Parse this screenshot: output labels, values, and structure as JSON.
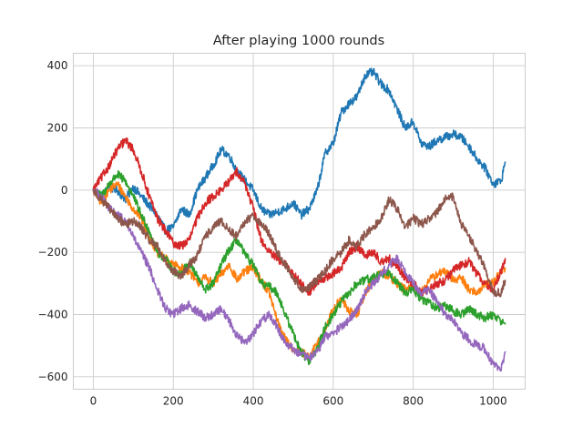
{
  "chart_data": {
    "type": "line",
    "title": "After playing 1000 rounds",
    "xlabel": "",
    "ylabel": "",
    "xlim": [
      -50,
      1080
    ],
    "ylim": [
      -640,
      440
    ],
    "xticks": [
      0,
      200,
      400,
      600,
      800,
      1000
    ],
    "yticks": [
      -600,
      -400,
      -200,
      0,
      200,
      400
    ],
    "xtick_labels": [
      "0",
      "200",
      "400",
      "600",
      "800",
      "1000"
    ],
    "ytick_labels": [
      "−600",
      "−400",
      "−200",
      "0",
      "200",
      "400"
    ],
    "grid": true,
    "legend": "none",
    "noise_amplitude": 14,
    "series": [
      {
        "color": "#1f77b4",
        "x": [
          0,
          20,
          40,
          60,
          80,
          100,
          120,
          140,
          160,
          180,
          200,
          220,
          240,
          260,
          280,
          300,
          320,
          340,
          360,
          380,
          400,
          420,
          440,
          460,
          480,
          500,
          520,
          540,
          560,
          580,
          600,
          620,
          640,
          660,
          680,
          700,
          720,
          740,
          760,
          780,
          800,
          820,
          840,
          860,
          880,
          900,
          920,
          940,
          960,
          980,
          1000,
          1020,
          1030
        ],
        "values": [
          0,
          -20,
          10,
          0,
          -30,
          10,
          -20,
          -50,
          -80,
          -130,
          -120,
          -60,
          -80,
          0,
          40,
          80,
          130,
          110,
          60,
          30,
          0,
          -60,
          -80,
          -70,
          -60,
          -40,
          -80,
          -60,
          0,
          120,
          150,
          250,
          280,
          300,
          370,
          380,
          340,
          320,
          260,
          200,
          220,
          150,
          140,
          160,
          170,
          180,
          170,
          140,
          100,
          70,
          20,
          30,
          90
        ]
      },
      {
        "color": "#ff7f0e",
        "x": [
          0,
          20,
          40,
          60,
          80,
          100,
          120,
          140,
          160,
          180,
          200,
          220,
          240,
          260,
          280,
          300,
          320,
          340,
          360,
          380,
          400,
          420,
          440,
          460,
          480,
          500,
          520,
          540,
          560,
          580,
          600,
          620,
          640,
          660,
          680,
          700,
          720,
          740,
          760,
          780,
          800,
          820,
          840,
          860,
          880,
          900,
          920,
          940,
          960,
          980,
          1000,
          1020,
          1030
        ],
        "values": [
          0,
          -40,
          0,
          20,
          -20,
          -60,
          -90,
          -150,
          -200,
          -220,
          -240,
          -250,
          -260,
          -300,
          -280,
          -300,
          -270,
          -240,
          -290,
          -260,
          -250,
          -290,
          -330,
          -420,
          -480,
          -510,
          -520,
          -540,
          -490,
          -450,
          -380,
          -350,
          -390,
          -400,
          -330,
          -290,
          -260,
          -280,
          -300,
          -320,
          -310,
          -330,
          -290,
          -270,
          -260,
          -290,
          -280,
          -320,
          -330,
          -300,
          -300,
          -260,
          -250
        ]
      },
      {
        "color": "#2ca02c",
        "x": [
          0,
          20,
          40,
          60,
          80,
          100,
          120,
          140,
          160,
          180,
          200,
          220,
          240,
          260,
          280,
          300,
          320,
          340,
          360,
          380,
          400,
          420,
          440,
          460,
          480,
          500,
          520,
          540,
          560,
          580,
          600,
          620,
          640,
          660,
          680,
          700,
          720,
          740,
          760,
          780,
          800,
          820,
          840,
          860,
          880,
          900,
          920,
          940,
          960,
          980,
          1000,
          1020,
          1030
        ],
        "values": [
          0,
          -20,
          20,
          50,
          30,
          -20,
          -80,
          -130,
          -200,
          -220,
          -260,
          -270,
          -230,
          -280,
          -320,
          -300,
          -240,
          -190,
          -160,
          -210,
          -240,
          -300,
          -310,
          -330,
          -400,
          -460,
          -520,
          -550,
          -510,
          -440,
          -400,
          -360,
          -330,
          -300,
          -290,
          -280,
          -270,
          -260,
          -300,
          -330,
          -320,
          -350,
          -360,
          -380,
          -370,
          -390,
          -400,
          -380,
          -400,
          -410,
          -400,
          -420,
          -430
        ]
      },
      {
        "color": "#d62728",
        "x": [
          0,
          20,
          40,
          60,
          80,
          100,
          120,
          140,
          160,
          180,
          200,
          220,
          240,
          260,
          280,
          300,
          320,
          340,
          360,
          380,
          400,
          420,
          440,
          460,
          480,
          500,
          520,
          540,
          560,
          580,
          600,
          620,
          640,
          660,
          680,
          700,
          720,
          740,
          760,
          780,
          800,
          820,
          840,
          860,
          880,
          900,
          920,
          940,
          960,
          980,
          1000,
          1020,
          1030
        ],
        "values": [
          0,
          40,
          80,
          130,
          160,
          130,
          60,
          -20,
          -90,
          -130,
          -170,
          -180,
          -160,
          -90,
          -40,
          -20,
          0,
          30,
          60,
          20,
          -60,
          -160,
          -200,
          -220,
          -240,
          -270,
          -300,
          -330,
          -300,
          -280,
          -270,
          -250,
          -200,
          -180,
          -210,
          -200,
          -230,
          -220,
          -250,
          -280,
          -300,
          -330,
          -320,
          -300,
          -290,
          -260,
          -240,
          -230,
          -270,
          -300,
          -320,
          -260,
          -220
        ]
      },
      {
        "color": "#9467bd",
        "x": [
          0,
          20,
          40,
          60,
          80,
          100,
          120,
          140,
          160,
          180,
          200,
          220,
          240,
          260,
          280,
          300,
          320,
          340,
          360,
          380,
          400,
          420,
          440,
          460,
          480,
          500,
          520,
          540,
          560,
          580,
          600,
          620,
          640,
          660,
          680,
          700,
          720,
          740,
          760,
          780,
          800,
          820,
          840,
          860,
          880,
          900,
          920,
          940,
          960,
          980,
          1000,
          1020,
          1030
        ],
        "values": [
          0,
          -20,
          -60,
          -80,
          -100,
          -150,
          -200,
          -250,
          -320,
          -380,
          -400,
          -380,
          -370,
          -390,
          -410,
          -400,
          -380,
          -420,
          -470,
          -490,
          -460,
          -420,
          -400,
          -440,
          -490,
          -510,
          -530,
          -540,
          -520,
          -470,
          -460,
          -440,
          -420,
          -380,
          -330,
          -300,
          -270,
          -240,
          -220,
          -260,
          -300,
          -330,
          -320,
          -360,
          -400,
          -420,
          -460,
          -480,
          -500,
          -510,
          -560,
          -580,
          -520
        ]
      },
      {
        "color": "#8c564b",
        "x": [
          0,
          20,
          40,
          60,
          80,
          100,
          120,
          140,
          160,
          180,
          200,
          220,
          240,
          260,
          280,
          300,
          320,
          340,
          360,
          380,
          400,
          420,
          440,
          460,
          480,
          500,
          520,
          540,
          560,
          580,
          600,
          620,
          640,
          660,
          680,
          700,
          720,
          740,
          760,
          780,
          800,
          820,
          840,
          860,
          880,
          900,
          920,
          940,
          960,
          980,
          1000,
          1020,
          1030
        ],
        "values": [
          0,
          -30,
          -60,
          -90,
          -110,
          -100,
          -120,
          -160,
          -180,
          -230,
          -260,
          -280,
          -240,
          -210,
          -150,
          -120,
          -100,
          -130,
          -150,
          -100,
          -80,
          -110,
          -140,
          -200,
          -240,
          -280,
          -320,
          -310,
          -290,
          -260,
          -220,
          -200,
          -160,
          -180,
          -140,
          -120,
          -90,
          -30,
          -60,
          -120,
          -90,
          -110,
          -90,
          -70,
          -30,
          -20,
          -110,
          -150,
          -200,
          -250,
          -330,
          -330,
          -290
        ]
      }
    ]
  }
}
